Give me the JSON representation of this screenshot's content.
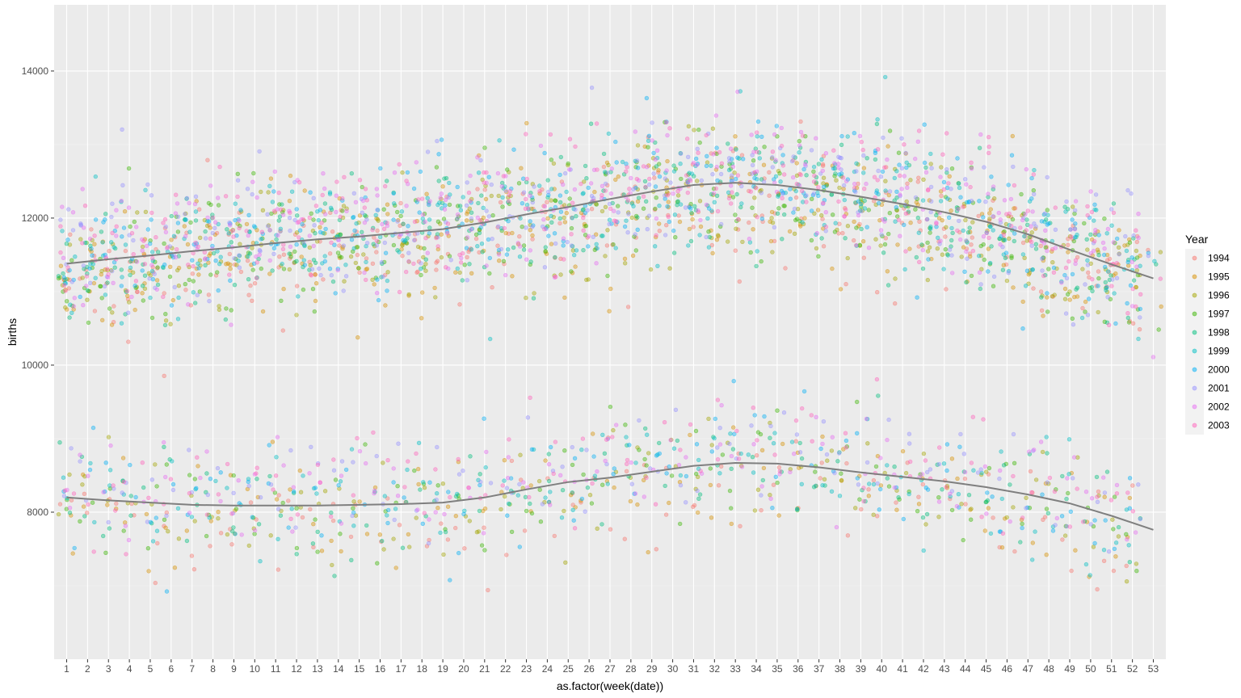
{
  "chart_data": {
    "type": "scatter",
    "xlabel": "as.factor(week(date))",
    "ylabel": "births",
    "xlim": [
      0.4,
      53.6
    ],
    "ylim": [
      6000,
      14900
    ],
    "x_ticks": [
      "1",
      "2",
      "3",
      "4",
      "5",
      "6",
      "7",
      "8",
      "9",
      "10",
      "11",
      "12",
      "13",
      "14",
      "15",
      "16",
      "17",
      "18",
      "19",
      "20",
      "21",
      "22",
      "23",
      "24",
      "25",
      "26",
      "27",
      "28",
      "29",
      "30",
      "31",
      "32",
      "33",
      "34",
      "35",
      "36",
      "37",
      "38",
      "39",
      "40",
      "41",
      "42",
      "43",
      "44",
      "45",
      "46",
      "47",
      "48",
      "49",
      "50",
      "51",
      "52",
      "53"
    ],
    "y_ticks": [
      8000,
      10000,
      12000,
      14000
    ],
    "grid": true,
    "legend": {
      "title": "Year",
      "position": "right",
      "entries": [
        "1994",
        "1995",
        "1996",
        "1997",
        "1998",
        "1999",
        "2000",
        "2001",
        "2002",
        "2003"
      ]
    },
    "series_colors": [
      "#F8766D",
      "#D89000",
      "#A3A500",
      "#39B600",
      "#00BF7D",
      "#00BFC4",
      "#00B0F6",
      "#9590FF",
      "#E76BF3",
      "#FF62BC"
    ],
    "point_alpha": 0.4,
    "weekday_band_mean_by_week": {
      "weeks": [
        1,
        5,
        10,
        15,
        20,
        25,
        30,
        33,
        35,
        40,
        45,
        50,
        53
      ],
      "values": [
        11380,
        11480,
        11650,
        11750,
        11900,
        12150,
        12380,
        12480,
        12450,
        12250,
        11950,
        11450,
        11180
      ]
    },
    "weekend_band_mean_by_week": {
      "weeks": [
        1,
        5,
        10,
        15,
        20,
        25,
        30,
        33,
        35,
        40,
        45,
        50,
        53
      ],
      "values": [
        8200,
        8130,
        8090,
        8100,
        8160,
        8430,
        8620,
        8670,
        8650,
        8500,
        8310,
        7980,
        7760
      ]
    },
    "smooth_lines": [
      {
        "x": [
          1,
          3,
          5,
          7,
          9,
          11,
          13,
          15,
          17,
          19,
          21,
          23,
          25,
          27,
          29,
          31,
          33,
          35,
          37,
          39,
          41,
          43,
          45,
          47,
          49,
          51,
          53
        ],
        "y": [
          11380,
          11440,
          11490,
          11550,
          11600,
          11660,
          11710,
          11750,
          11800,
          11850,
          11940,
          12050,
          12150,
          12260,
          12360,
          12450,
          12480,
          12450,
          12380,
          12290,
          12190,
          12080,
          11950,
          11780,
          11570,
          11370,
          11180
        ]
      },
      {
        "x": [
          1,
          3,
          5,
          7,
          9,
          11,
          13,
          15,
          17,
          19,
          21,
          23,
          25,
          27,
          29,
          31,
          33,
          35,
          37,
          39,
          41,
          43,
          45,
          47,
          49,
          51,
          53
        ],
        "y": [
          8200,
          8160,
          8130,
          8100,
          8090,
          8090,
          8090,
          8100,
          8110,
          8130,
          8200,
          8310,
          8410,
          8470,
          8550,
          8630,
          8670,
          8660,
          8610,
          8540,
          8480,
          8420,
          8340,
          8240,
          8120,
          7950,
          7760
        ]
      }
    ],
    "smooth_color": "#7f7f7f"
  }
}
